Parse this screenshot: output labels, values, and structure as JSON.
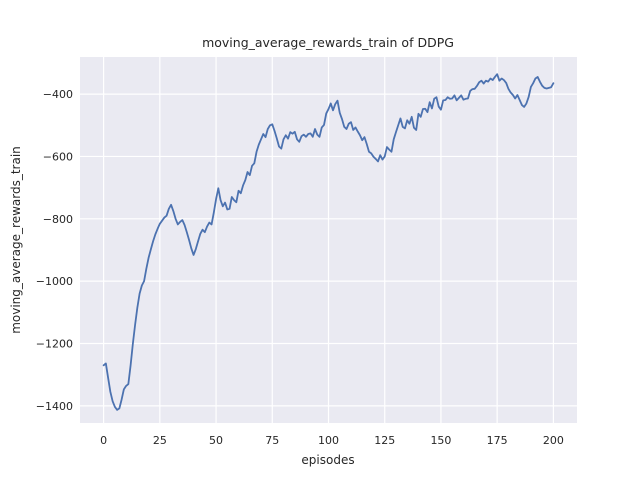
{
  "chart_data": {
    "type": "line",
    "title": "moving_average_rewards_train of DDPG",
    "xlabel": "episodes",
    "ylabel": "moving_average_rewards_train",
    "legend": null,
    "grid": true,
    "xlim": [
      -10.5,
      210.5
    ],
    "ylim": [
      -1455,
      -281
    ],
    "xticks": [
      0,
      25,
      50,
      75,
      100,
      125,
      150,
      175,
      200
    ],
    "yticks": [
      -400,
      -600,
      -800,
      -1000,
      -1200,
      -1400
    ],
    "x_start": 0,
    "x_step": 1,
    "series": [
      {
        "name": "moving_average_rewards_train",
        "values": [
          -1270,
          -1264,
          -1310,
          -1355,
          -1385,
          -1403,
          -1413,
          -1408,
          -1380,
          -1347,
          -1336,
          -1330,
          -1270,
          -1201,
          -1140,
          -1085,
          -1040,
          -1014,
          -1000,
          -960,
          -925,
          -898,
          -872,
          -850,
          -832,
          -816,
          -806,
          -796,
          -790,
          -768,
          -755,
          -775,
          -800,
          -818,
          -810,
          -804,
          -820,
          -843,
          -868,
          -895,
          -916,
          -897,
          -872,
          -848,
          -835,
          -843,
          -825,
          -812,
          -818,
          -780,
          -737,
          -702,
          -740,
          -760,
          -748,
          -770,
          -768,
          -730,
          -740,
          -747,
          -710,
          -718,
          -693,
          -676,
          -650,
          -660,
          -630,
          -622,
          -585,
          -562,
          -545,
          -528,
          -538,
          -512,
          -500,
          -497,
          -518,
          -542,
          -568,
          -575,
          -545,
          -532,
          -543,
          -522,
          -527,
          -521,
          -545,
          -553,
          -535,
          -530,
          -537,
          -528,
          -526,
          -537,
          -512,
          -530,
          -537,
          -507,
          -499,
          -462,
          -448,
          -430,
          -452,
          -432,
          -421,
          -460,
          -480,
          -505,
          -512,
          -495,
          -490,
          -515,
          -507,
          -520,
          -532,
          -548,
          -538,
          -560,
          -585,
          -590,
          -601,
          -608,
          -616,
          -596,
          -610,
          -600,
          -570,
          -578,
          -585,
          -545,
          -522,
          -500,
          -478,
          -505,
          -510,
          -484,
          -495,
          -473,
          -508,
          -515,
          -463,
          -473,
          -448,
          -447,
          -458,
          -426,
          -446,
          -415,
          -410,
          -440,
          -450,
          -420,
          -419,
          -410,
          -415,
          -414,
          -404,
          -420,
          -412,
          -404,
          -418,
          -415,
          -414,
          -390,
          -384,
          -383,
          -374,
          -362,
          -357,
          -366,
          -357,
          -360,
          -350,
          -355,
          -345,
          -336,
          -357,
          -350,
          -355,
          -364,
          -383,
          -395,
          -403,
          -414,
          -403,
          -419,
          -435,
          -441,
          -430,
          -409,
          -377,
          -365,
          -350,
          -345,
          -360,
          -373,
          -380,
          -382,
          -380,
          -378,
          -365
        ]
      }
    ],
    "colors": {
      "line": "#4C72B0",
      "plot_background": "#EAEAF2",
      "gridline": "#FFFFFF",
      "figure_background": "#FFFFFF",
      "text": "#262626"
    }
  }
}
